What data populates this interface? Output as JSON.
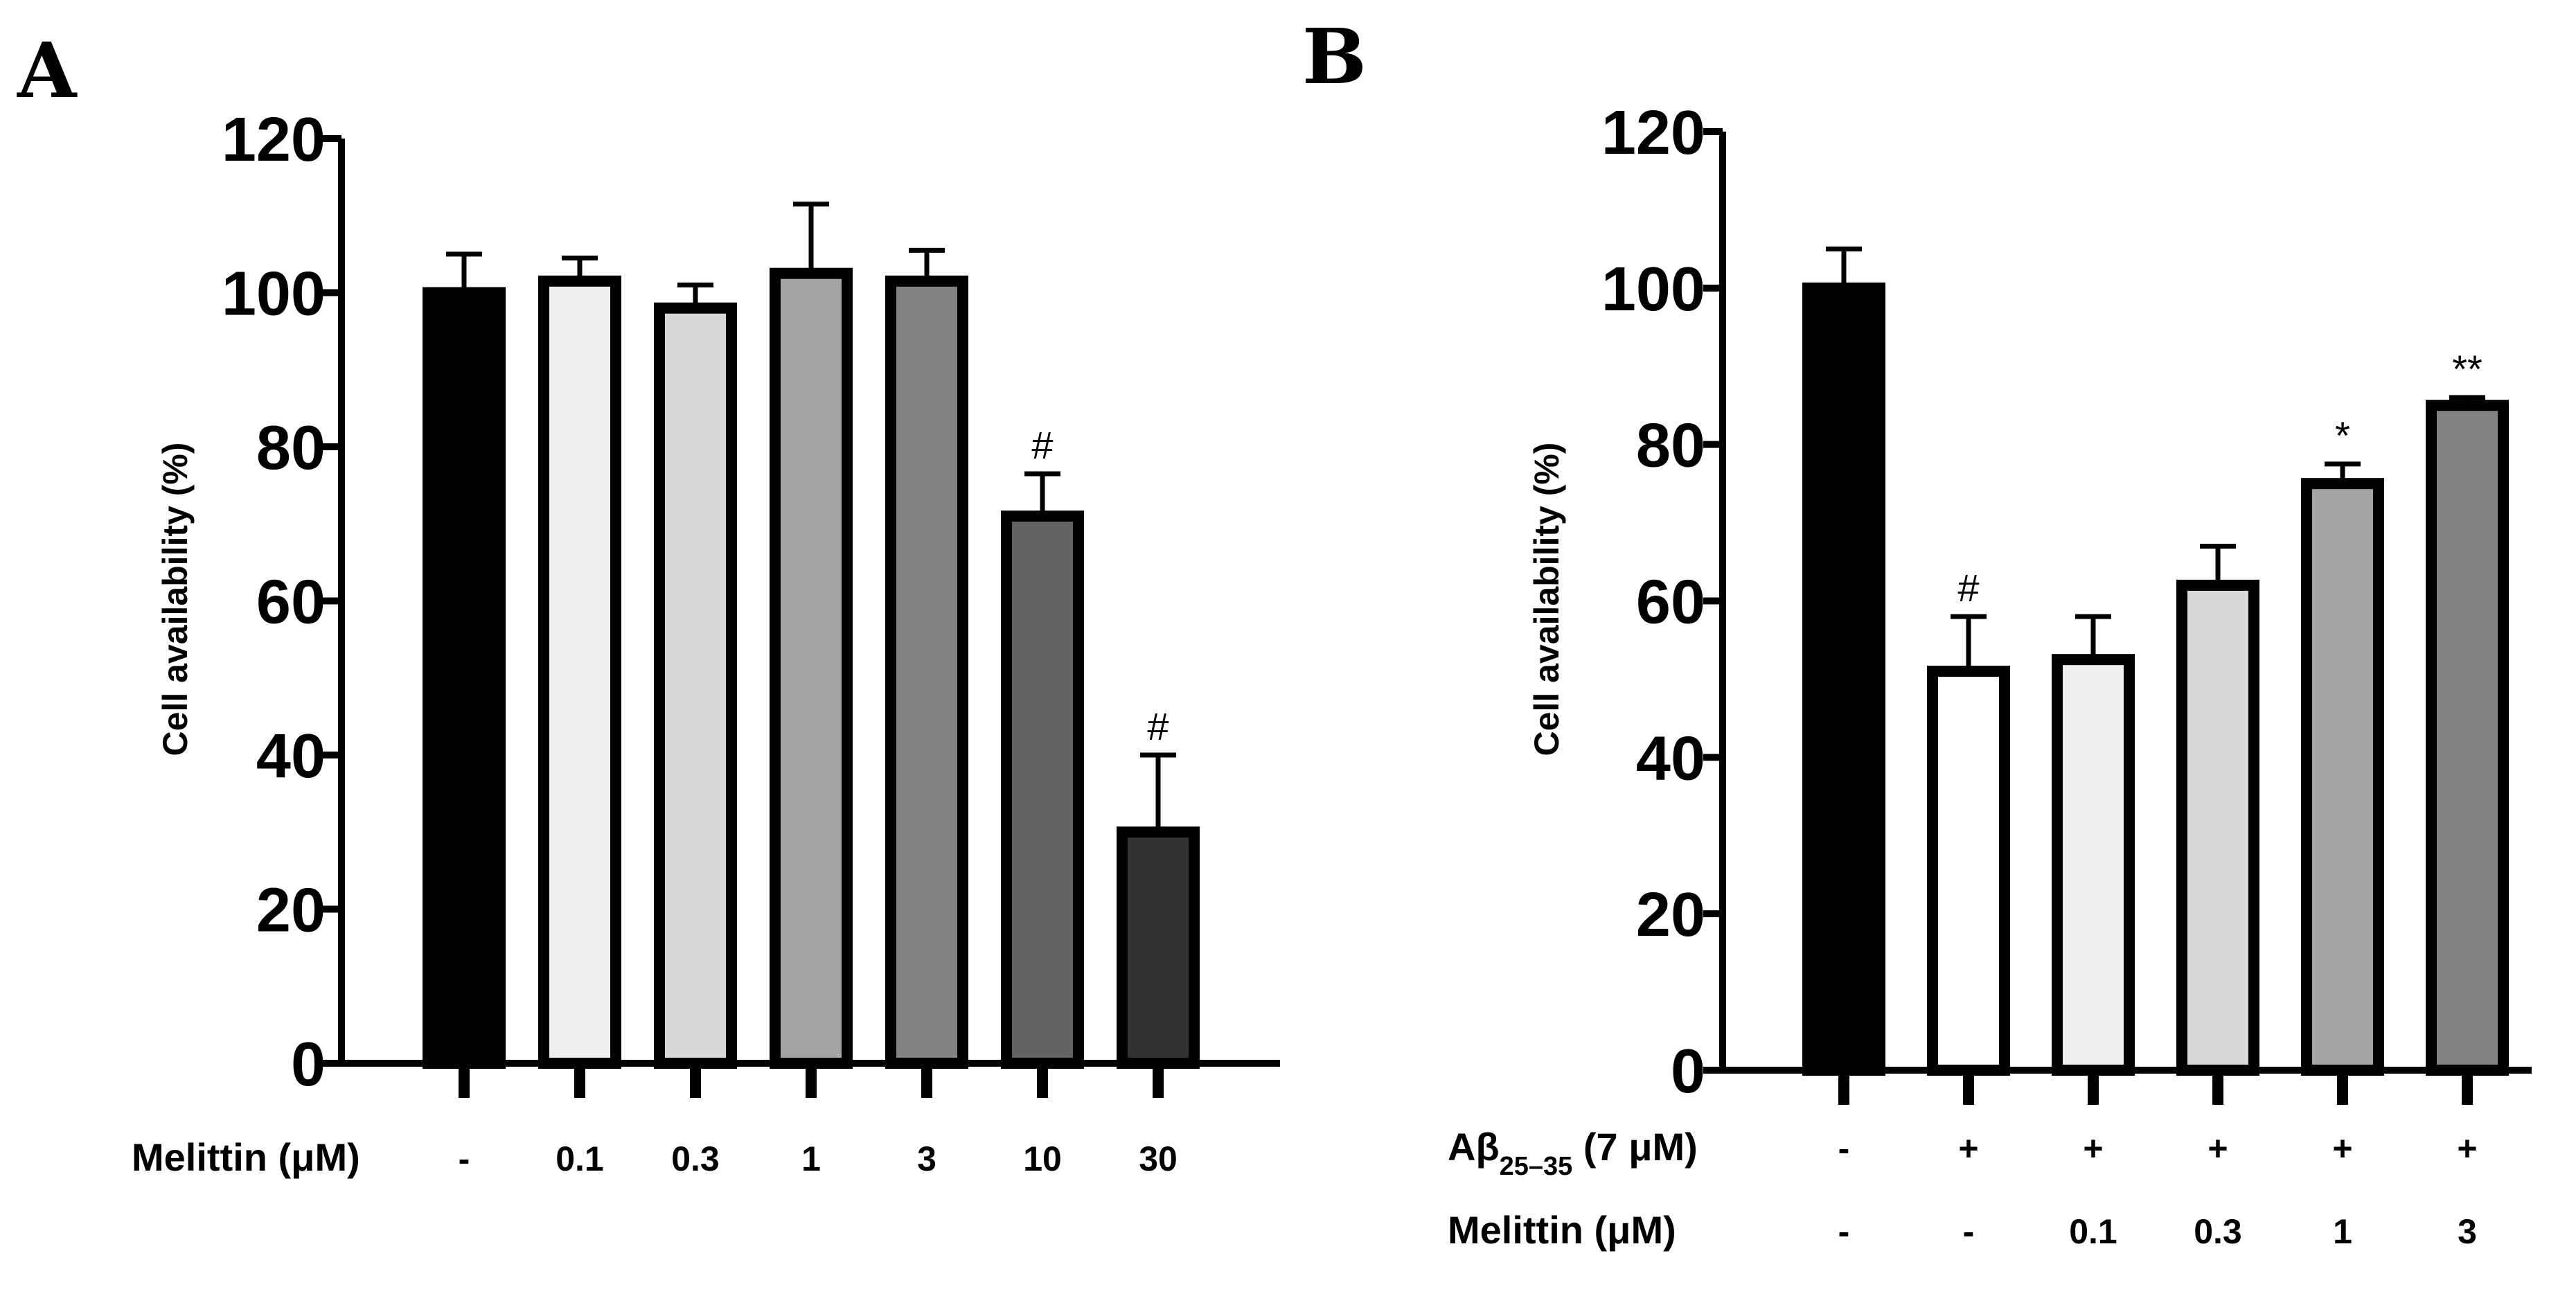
{
  "chart_data": [
    {
      "panel": "A",
      "type": "bar",
      "ylabel": "Cell availability (%)",
      "ylim": [
        0,
        120
      ],
      "yticks": [
        0,
        20,
        40,
        60,
        80,
        100,
        120
      ],
      "rows": [
        {
          "label": "Melittin (μM)",
          "values": [
            "-",
            "0.1",
            "0.3",
            "1",
            "3",
            "10",
            "30"
          ]
        }
      ],
      "values": [
        100,
        101.5,
        98,
        102.5,
        101.5,
        71,
        30
      ],
      "errors": [
        5,
        3,
        3,
        9,
        4,
        5.5,
        10
      ],
      "annotations": [
        "",
        "",
        "",
        "",
        "",
        "#",
        "#"
      ],
      "colors": [
        "#000000",
        "#efefef",
        "#d8d8d8",
        "#a4a4a4",
        "#838383",
        "#636363",
        "#323232"
      ]
    },
    {
      "panel": "B",
      "type": "bar",
      "ylabel": "Cell availability (%)",
      "ylim": [
        0,
        120
      ],
      "yticks": [
        0,
        20,
        40,
        60,
        80,
        100,
        120
      ],
      "rows": [
        {
          "label": "Aβ",
          "sub": "25–35",
          "suffix": " (7 μM)",
          "values": [
            "-",
            "+",
            "+",
            "+",
            "+",
            "+"
          ]
        },
        {
          "label": "Melittin (μM)",
          "values": [
            "-",
            "-",
            "0.1",
            "0.3",
            "1",
            "3"
          ]
        }
      ],
      "values": [
        100,
        51,
        52.5,
        62,
        75,
        85
      ],
      "errors": [
        5,
        7,
        5.5,
        5,
        2.5,
        1
      ],
      "annotations": [
        "",
        "#",
        "",
        "",
        "*",
        "**"
      ],
      "colors": [
        "#000000",
        "#ffffff",
        "#efefef",
        "#d8d8d8",
        "#a4a4a4",
        "#838383"
      ]
    }
  ]
}
